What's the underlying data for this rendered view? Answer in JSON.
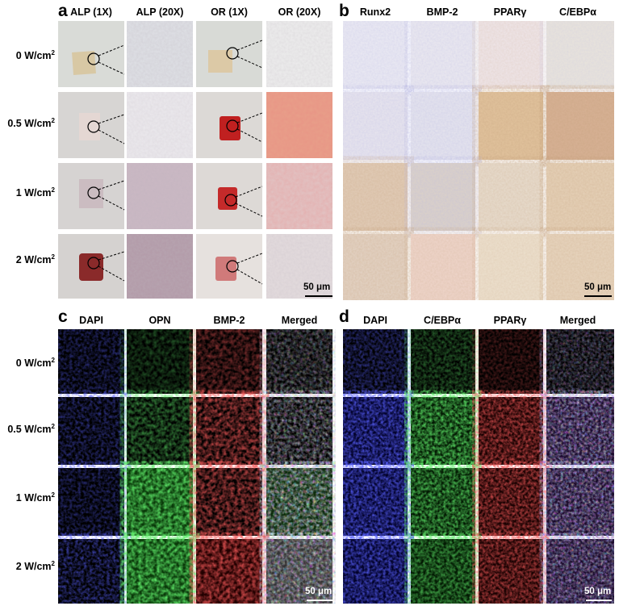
{
  "panels": {
    "a": {
      "label": "a",
      "columns": [
        "ALP (1X)",
        "ALP (20X)",
        "OR (1X)",
        "OR (20X)"
      ],
      "rows": [
        "0 W/cm",
        "0.5 W/cm",
        "1 W/cm",
        "2 W/cm"
      ],
      "unit_sup": "2",
      "scale_bar": "50 μm"
    },
    "b": {
      "label": "b",
      "columns": [
        "Runx2",
        "BMP-2",
        "PPARγ",
        "C/EBPα"
      ],
      "scale_bar": "50 μm"
    },
    "c": {
      "label": "c",
      "columns": [
        "DAPI",
        "OPN",
        "BMP-2",
        "Merged"
      ],
      "rows": [
        "0 W/cm",
        "0.5 W/cm",
        "1 W/cm",
        "2 W/cm"
      ],
      "unit_sup": "2",
      "scale_bar": "50 μm"
    },
    "d": {
      "label": "d",
      "columns": [
        "DAPI",
        "C/EBPα",
        "PPARγ",
        "Merged"
      ],
      "scale_bar": "50 μm"
    }
  },
  "colors": {
    "dapi": "#1a1fd6",
    "green": "#1fbf2a",
    "red": "#d81818",
    "alp_stain": "#8a3050",
    "or_stain": "#c82020",
    "ihc_brown": "#9a6a3a",
    "ihc_blue": "#7d7fb8"
  }
}
